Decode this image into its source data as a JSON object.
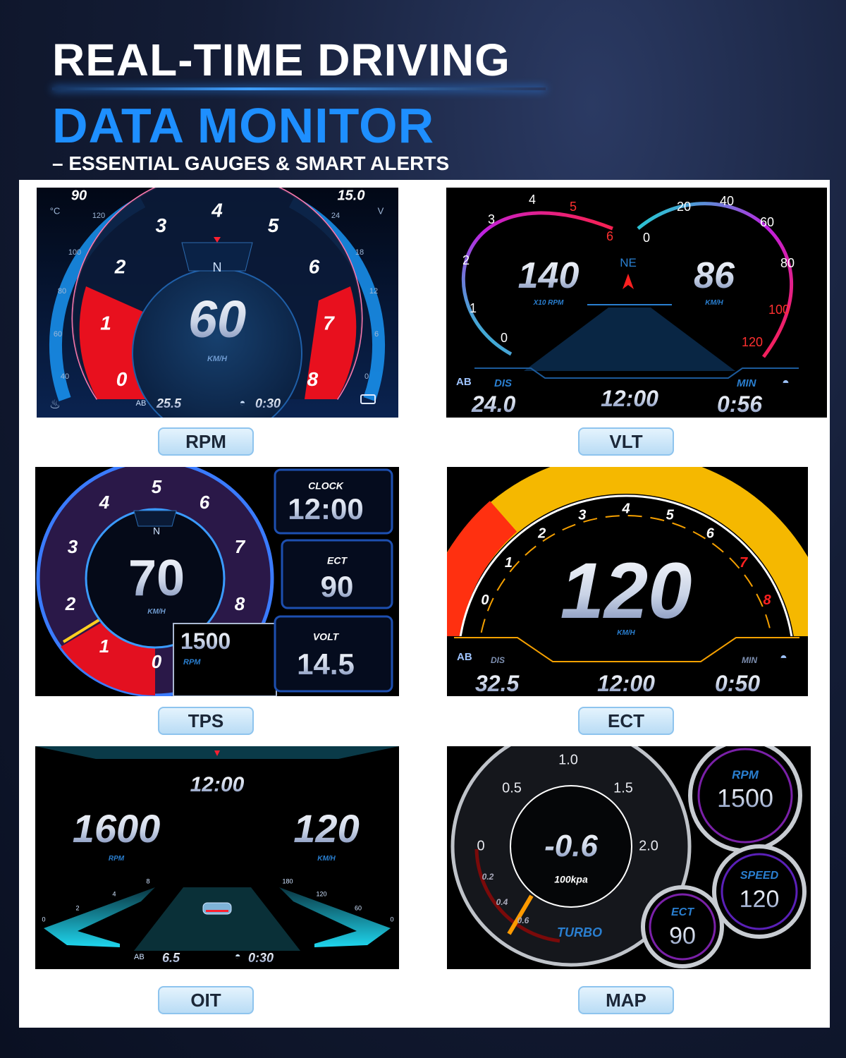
{
  "header": {
    "title_line1": "REAL-TIME DRIVING",
    "title_line2": "DATA MONITOR",
    "subtitle": "– ESSENTIAL GAUGES & SMART ALERTS"
  },
  "colors": {
    "title_blue": "#1e8fff",
    "label_bg": "#cfe9fb",
    "rpm_red": "#ff1a2a",
    "ect_yellow": "#f5b800"
  },
  "panels": {
    "rpm": {
      "label": "RPM",
      "speed": "60",
      "speed_unit": "KM/H",
      "compass": "N",
      "dial_ticks": [
        "0",
        "1",
        "2",
        "3",
        "4",
        "5",
        "6",
        "7",
        "8"
      ],
      "temp_max": "90",
      "temp_unit": "°C",
      "temp_ticks": [
        "40",
        "60",
        "80",
        "100",
        "120"
      ],
      "volt_max": "15.0",
      "volt_unit": "V",
      "volt_ticks": [
        "0",
        "6",
        "12",
        "18",
        "24"
      ],
      "trip": "25.5",
      "time": "0:30",
      "icons": [
        "coolant-icon",
        "trip-ab-icon",
        "timer-icon",
        "battery-icon"
      ]
    },
    "vlt": {
      "label": "VLT",
      "rpm_value": "140",
      "rpm_unit": "X10 RPM",
      "heading": "NE",
      "speed_value": "86",
      "speed_unit": "KM/H",
      "rpm_ticks": [
        "0",
        "1",
        "2",
        "3",
        "4",
        "5",
        "6"
      ],
      "speed_ticks": [
        "0",
        "20",
        "40",
        "60",
        "80",
        "100",
        "120"
      ],
      "dis_label": "DIS",
      "dis_value": "24.0",
      "clock": "12:00",
      "min_label": "MIN",
      "min_value": "0:56"
    },
    "tps": {
      "label": "TPS",
      "speed": "70",
      "speed_unit": "KM/H",
      "compass": "N",
      "dial_ticks": [
        "0",
        "1",
        "2",
        "3",
        "4",
        "5",
        "6",
        "7",
        "8"
      ],
      "rpm_value": "1500",
      "rpm_unit": "RPM",
      "clock_label": "CLOCK",
      "clock": "12:00",
      "ect_label": "ECT",
      "ect_value": "90",
      "volt_label": "VOLT",
      "volt_value": "14.5"
    },
    "ect": {
      "label": "ECT",
      "speed": "120",
      "speed_unit": "KM/H",
      "dial_ticks": [
        "0",
        "1",
        "2",
        "3",
        "4",
        "5",
        "6",
        "7",
        "8"
      ],
      "dis_label": "DIS",
      "dis_value": "32.5",
      "clock": "12:00",
      "min_label": "MIN",
      "min_value": "0:50"
    },
    "oit": {
      "label": "OIT",
      "clock": "12:00",
      "rpm_value": "1600",
      "rpm_unit": "RPM",
      "speed_value": "120",
      "speed_unit": "KM/H",
      "rpm_ticks": [
        "0",
        "2",
        "4",
        "8"
      ],
      "speed_ticks": [
        "180",
        "120",
        "60",
        "0"
      ],
      "trip": "6.5",
      "time": "0:30"
    },
    "map": {
      "label": "MAP",
      "boost_value": "-0.6",
      "boost_unit": "100kpa",
      "gauge_name": "TURBO",
      "major_ticks": [
        "0",
        "0.5",
        "1.0",
        "1.5",
        "2.0"
      ],
      "minor_ticks": [
        "0.2",
        "0.4",
        "0.6"
      ],
      "rpm_label": "RPM",
      "rpm_value": "1500",
      "speed_label": "SPEED",
      "speed_value": "120",
      "ect_label": "ECT",
      "ect_value": "90"
    }
  }
}
